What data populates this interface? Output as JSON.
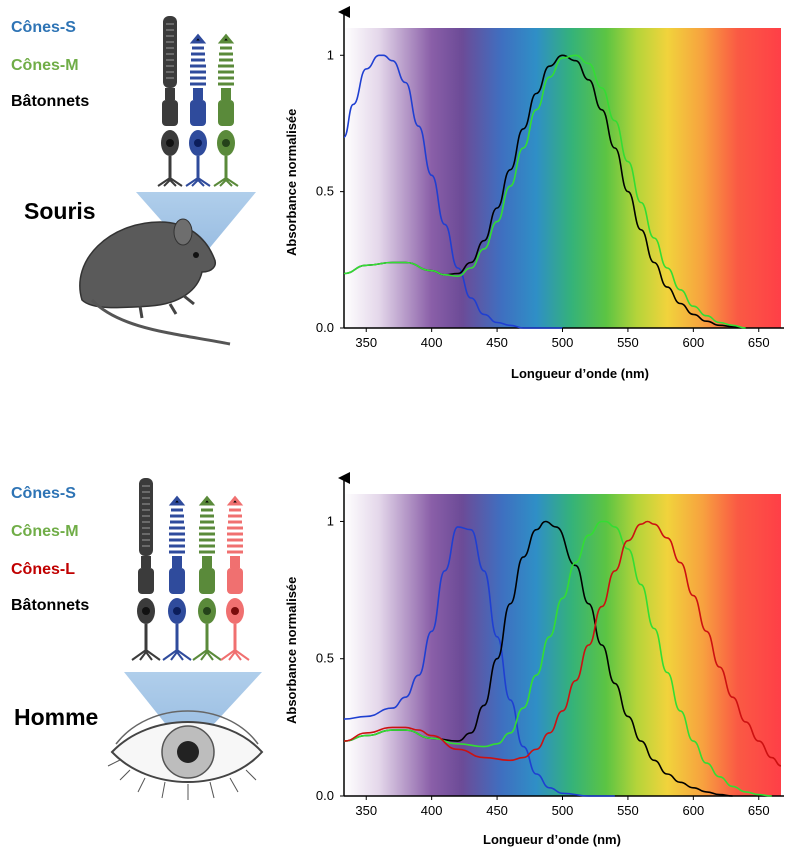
{
  "mouse": {
    "legend": [
      {
        "label": "Cônes-S",
        "color": "#2e74b5"
      },
      {
        "label": "Cônes-M",
        "color": "#70ad47"
      },
      {
        "label": "Bâtonnets",
        "color": "#000000"
      }
    ],
    "title": "Souris"
  },
  "human": {
    "legend": [
      {
        "label": "Cônes-S",
        "color": "#2e74b5"
      },
      {
        "label": "Cônes-M",
        "color": "#70ad47"
      },
      {
        "label": "Cônes-L",
        "color": "#c00000"
      },
      {
        "label": "Bâtonnets",
        "color": "#000000"
      }
    ],
    "title": "Homme"
  },
  "chart_data": [
    {
      "type": "line",
      "xlabel": "Longueur d’onde (nm)",
      "ylabel": "Absorbance normalisée",
      "xlim": [
        333,
        667
      ],
      "ylim": [
        0,
        1.1
      ],
      "xticks": [
        "350",
        "400",
        "450",
        "500",
        "550",
        "600",
        "650"
      ],
      "yticks": [
        "0.0",
        "0.5",
        "1"
      ],
      "background": "visible-spectrum gradient",
      "series": [
        {
          "color": "#1f3fd1",
          "x": [
            333,
            340,
            350,
            360,
            363,
            370,
            380,
            390,
            400,
            410,
            420,
            430,
            440,
            450,
            460,
            470,
            480,
            500
          ],
          "y": [
            0.7,
            0.82,
            0.95,
            1.0,
            1.0,
            0.98,
            0.9,
            0.74,
            0.56,
            0.38,
            0.22,
            0.11,
            0.05,
            0.02,
            0.01,
            0.0,
            0.0,
            0.0
          ]
        },
        {
          "color": "#000000",
          "x": [
            333,
            350,
            370,
            380,
            400,
            410,
            420,
            430,
            440,
            450,
            460,
            470,
            480,
            490,
            500,
            510,
            520,
            530,
            540,
            550,
            560,
            570,
            580,
            590,
            600,
            610,
            620,
            630,
            640
          ],
          "y": [
            0.2,
            0.23,
            0.24,
            0.24,
            0.21,
            0.195,
            0.2,
            0.24,
            0.32,
            0.44,
            0.58,
            0.73,
            0.86,
            0.96,
            1.0,
            0.98,
            0.91,
            0.8,
            0.66,
            0.5,
            0.36,
            0.24,
            0.15,
            0.09,
            0.05,
            0.025,
            0.01,
            0.005,
            0.0
          ]
        },
        {
          "color": "#33dd33",
          "x": [
            333,
            350,
            370,
            380,
            400,
            410,
            420,
            430,
            440,
            450,
            460,
            470,
            480,
            490,
            500,
            510,
            520,
            530,
            540,
            550,
            560,
            570,
            580,
            590,
            600,
            610,
            620,
            630,
            640
          ],
          "y": [
            0.2,
            0.23,
            0.24,
            0.24,
            0.21,
            0.195,
            0.19,
            0.22,
            0.29,
            0.39,
            0.52,
            0.66,
            0.8,
            0.92,
            0.99,
            1.0,
            0.97,
            0.88,
            0.76,
            0.61,
            0.46,
            0.33,
            0.22,
            0.14,
            0.08,
            0.045,
            0.02,
            0.01,
            0.0
          ]
        }
      ]
    },
    {
      "type": "line",
      "xlabel": "Longueur d’onde (nm)",
      "ylabel": "Absorbance normalisée",
      "xlim": [
        333,
        667
      ],
      "ylim": [
        0,
        1.1
      ],
      "xticks": [
        "350",
        "400",
        "450",
        "500",
        "550",
        "600",
        "650"
      ],
      "yticks": [
        "0.0",
        "0.5",
        "1"
      ],
      "background": "visible-spectrum gradient",
      "series": [
        {
          "color": "#1f3fd1",
          "x": [
            333,
            350,
            370,
            380,
            390,
            400,
            410,
            420,
            430,
            440,
            450,
            460,
            470,
            480,
            490,
            500,
            520,
            540
          ],
          "y": [
            0.28,
            0.29,
            0.32,
            0.36,
            0.44,
            0.6,
            0.82,
            0.98,
            0.97,
            0.82,
            0.58,
            0.35,
            0.18,
            0.08,
            0.03,
            0.01,
            0.0,
            0.0
          ]
        },
        {
          "color": "#000000",
          "x": [
            333,
            350,
            370,
            380,
            400,
            420,
            430,
            440,
            450,
            460,
            470,
            480,
            487,
            495,
            510,
            520,
            530,
            540,
            550,
            560,
            570,
            580,
            590,
            600,
            610,
            620,
            630
          ],
          "y": [
            0.2,
            0.22,
            0.24,
            0.24,
            0.21,
            0.2,
            0.23,
            0.33,
            0.5,
            0.7,
            0.87,
            0.97,
            1.0,
            0.98,
            0.84,
            0.7,
            0.55,
            0.41,
            0.29,
            0.2,
            0.13,
            0.08,
            0.05,
            0.03,
            0.015,
            0.005,
            0.0
          ]
        },
        {
          "color": "#33dd33",
          "x": [
            333,
            350,
            370,
            380,
            400,
            420,
            440,
            450,
            460,
            470,
            480,
            490,
            500,
            510,
            520,
            530,
            533,
            540,
            550,
            560,
            570,
            580,
            590,
            600,
            610,
            620,
            630,
            640,
            650,
            660
          ],
          "y": [
            0.2,
            0.22,
            0.24,
            0.24,
            0.21,
            0.19,
            0.18,
            0.19,
            0.23,
            0.32,
            0.44,
            0.58,
            0.72,
            0.85,
            0.95,
            1.0,
            1.0,
            0.98,
            0.9,
            0.77,
            0.61,
            0.45,
            0.31,
            0.2,
            0.12,
            0.07,
            0.035,
            0.015,
            0.005,
            0.0
          ]
        },
        {
          "color": "#cc1111",
          "x": [
            333,
            350,
            370,
            380,
            390,
            400,
            420,
            440,
            460,
            470,
            480,
            490,
            500,
            510,
            520,
            530,
            540,
            550,
            560,
            565,
            570,
            580,
            590,
            600,
            610,
            620,
            630,
            640,
            650,
            660,
            667
          ],
          "y": [
            0.2,
            0.23,
            0.25,
            0.25,
            0.24,
            0.22,
            0.17,
            0.14,
            0.13,
            0.14,
            0.17,
            0.23,
            0.31,
            0.42,
            0.55,
            0.69,
            0.82,
            0.93,
            0.99,
            1.0,
            0.99,
            0.94,
            0.85,
            0.73,
            0.6,
            0.47,
            0.36,
            0.27,
            0.2,
            0.14,
            0.11
          ]
        }
      ]
    }
  ]
}
